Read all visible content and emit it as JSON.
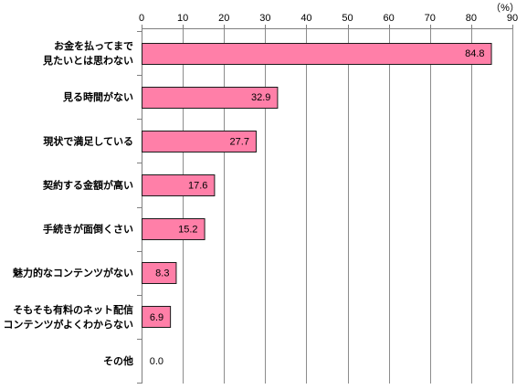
{
  "chart_data": {
    "type": "bar",
    "orientation": "horizontal",
    "categories": [
      "お金を払ってまで\n見たいとは思わない",
      "見る時間がない",
      "現状で満足している",
      "契約する金額が高い",
      "手続きが面倒くさい",
      "魅力的なコンテンツがない",
      "そもそも有料のネット配信\nコンテンツがよくわからない",
      "その他"
    ],
    "values": [
      84.8,
      32.9,
      27.7,
      17.6,
      15.2,
      8.3,
      6.9,
      0.0
    ],
    "xlim": [
      0,
      90
    ],
    "xticks": [
      0,
      10,
      20,
      30,
      40,
      50,
      60,
      70,
      80,
      90
    ],
    "xaxis_position": "top",
    "xlabel": "（%）",
    "grid": true,
    "legend": "none",
    "data_labels": true
  },
  "colors": {
    "bar": "#FF7FA8",
    "bar_border": "#1A1A1A",
    "grid": "#8C8C8C",
    "axis": "#7F7F7F"
  }
}
